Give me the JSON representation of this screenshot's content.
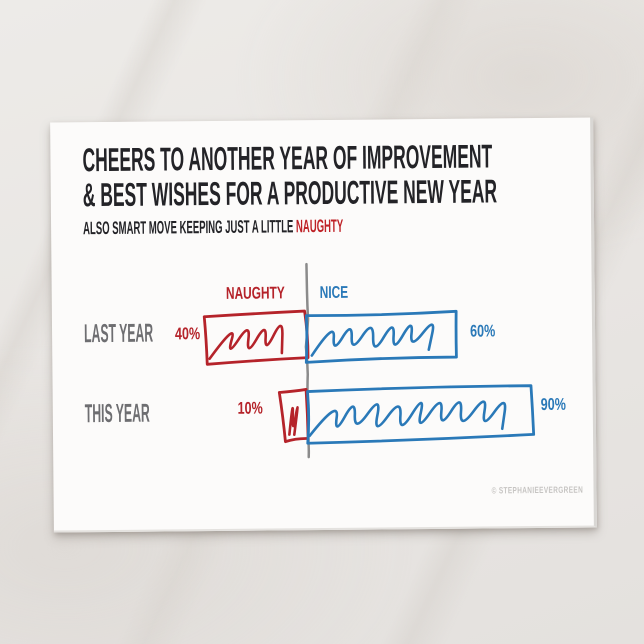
{
  "card": {
    "title_line1": "CHEERS TO ANOTHER YEAR OF IMPROVEMENT",
    "title_line2": "& BEST WISHES FOR A PRODUCTIVE NEW YEAR",
    "subtitle_prefix": "ALSO SMART MOVE KEEPING JUST A LITTLE ",
    "subtitle_highlight": "NAUGHTY",
    "watermark": "© STEPHANIEEVERGREEN"
  },
  "colors": {
    "naughty_red": "#b5232a",
    "nice_blue": "#2a79b8",
    "row_label_gray": "#6e6e71",
    "axis_gray": "#8b8b8b",
    "title_black": "#232327",
    "card_white": "#fcfbfa"
  },
  "chart_data": {
    "type": "bar",
    "orientation": "horizontal-diverging",
    "style": "hand-drawn-sketch",
    "categories": [
      "LAST YEAR",
      "THIS YEAR"
    ],
    "series": [
      {
        "name": "NAUGHTY",
        "color": "#b5232a",
        "side": "left",
        "values": [
          40,
          10
        ]
      },
      {
        "name": "NICE",
        "color": "#2a79b8",
        "side": "right",
        "values": [
          60,
          90
        ]
      }
    ],
    "value_labels": [
      [
        "40%",
        "60%"
      ],
      [
        "10%",
        "90%"
      ]
    ],
    "unit": "%",
    "xlim": [
      0,
      100
    ],
    "grid": false,
    "legend_position": "column-headers-above-axis"
  }
}
